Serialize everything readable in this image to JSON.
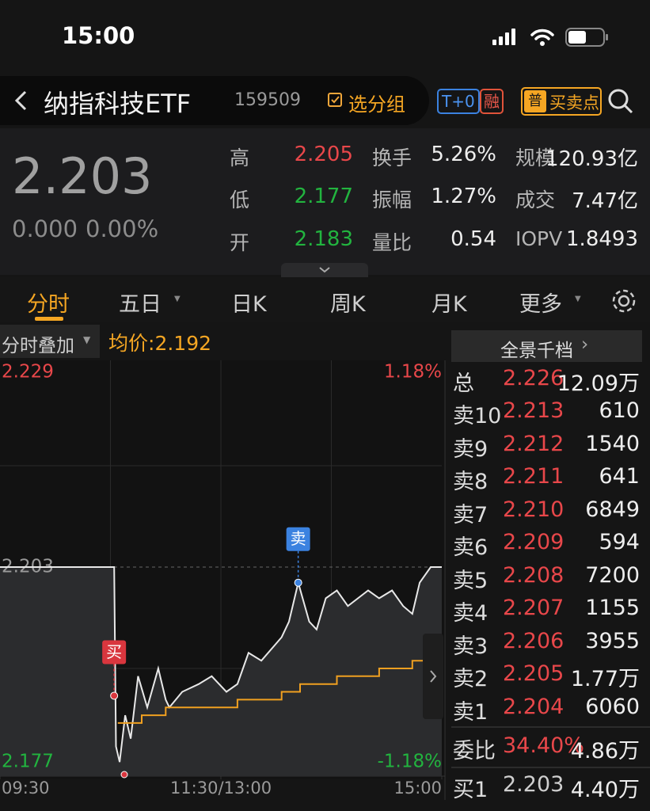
{
  "status_bar": {
    "time": "15:00"
  },
  "header": {
    "name": "纳指科技ETF",
    "code": "159509",
    "group_button": "选分组",
    "badges": [
      "T+0",
      "融"
    ],
    "tag": "普",
    "trade_button": "买卖点"
  },
  "quote": {
    "price": "2.203",
    "change": "0.000",
    "change_pct": "0.00%",
    "stats": [
      [
        [
          "高",
          "2.205"
        ],
        [
          "换手",
          "5.26%"
        ],
        [
          "规模",
          "120.93亿"
        ]
      ],
      [
        [
          "低",
          "2.177"
        ],
        [
          "振幅",
          "1.27%"
        ],
        [
          "成交",
          "7.47亿"
        ]
      ],
      [
        [
          "开",
          "2.183"
        ],
        [
          "量比",
          "0.54"
        ],
        [
          "IOPV",
          "1.8493"
        ]
      ]
    ]
  },
  "tabs": [
    "分时",
    "五日",
    "日K",
    "周K",
    "月K",
    "更多"
  ],
  "chart_toolbar": {
    "overlay": "分时叠加",
    "avg_label": "均价:",
    "avg_value": "2.192"
  },
  "chart_data": {
    "type": "line",
    "x": [
      0,
      62,
      63,
      65,
      68,
      71,
      75,
      80,
      86,
      90,
      92,
      99,
      108,
      115,
      123,
      129,
      135,
      142,
      153,
      157,
      162,
      168,
      172,
      177,
      183,
      189,
      200,
      206,
      213,
      219,
      224,
      228,
      234,
      240
    ],
    "series": [
      {
        "color": "#e8e8e8",
        "values": [
          2.203,
          2.203,
          2.18,
          2.178,
          2.184,
          2.181,
          2.189,
          2.185,
          2.19,
          2.186,
          2.185,
          2.187,
          2.188,
          2.189,
          2.187,
          2.188,
          2.192,
          2.191,
          2.194,
          2.196,
          2.201,
          2.196,
          2.195,
          2.199,
          2.2,
          2.198,
          2.2,
          2.199,
          2.2,
          2.198,
          2.197,
          2.201,
          2.203,
          2.203
        ]
      },
      {
        "name": "均价",
        "color": "#f0a020",
        "x": [
          64,
          77,
          90,
          129,
          153,
          163,
          183,
          206,
          224,
          240
        ],
        "values": [
          2.183,
          2.184,
          2.185,
          2.186,
          2.187,
          2.188,
          2.189,
          2.19,
          2.191,
          2.192
        ]
      }
    ],
    "xlim": [
      0,
      240
    ],
    "xticks": [
      {
        "value": 0,
        "label": "09:30"
      },
      {
        "value": 120,
        "label": "11:30/13:00"
      },
      {
        "value": 240,
        "label": "15:00"
      }
    ],
    "ylim": [
      2.177,
      2.229
    ],
    "yticks": [
      2.229,
      2.203,
      2.177
    ],
    "y2lim": [
      -1.18,
      1.18
    ],
    "y2ticks": [
      {
        "value": 1.18,
        "label": "1.18%"
      },
      {
        "value": -1.18,
        "label": "-1.18%"
      }
    ],
    "markers": [
      {
        "label": "买",
        "x": 62,
        "value": 2.1865,
        "color": "#d9363e"
      },
      {
        "label": "卖",
        "x": 162,
        "value": 2.201,
        "color": "#3b82e0"
      }
    ]
  },
  "book": {
    "button": "全景千档",
    "total": [
      "总",
      "2.226",
      "12.09万"
    ],
    "asks": [
      [
        "卖10",
        "2.213",
        "610"
      ],
      [
        "卖9",
        "2.212",
        "1540"
      ],
      [
        "卖8",
        "2.211",
        "641"
      ],
      [
        "卖7",
        "2.210",
        "6849"
      ],
      [
        "卖6",
        "2.209",
        "594"
      ],
      [
        "卖5",
        "2.208",
        "7200"
      ],
      [
        "卖4",
        "2.207",
        "1155"
      ],
      [
        "卖3",
        "2.206",
        "3955"
      ],
      [
        "卖2",
        "2.205",
        "1.77万"
      ],
      [
        "卖1",
        "2.204",
        "6060"
      ]
    ],
    "ratio": [
      "委比",
      "34.40%",
      "4.86万"
    ],
    "bids": [
      [
        "买1",
        "2.203",
        "4.40万"
      ]
    ]
  }
}
